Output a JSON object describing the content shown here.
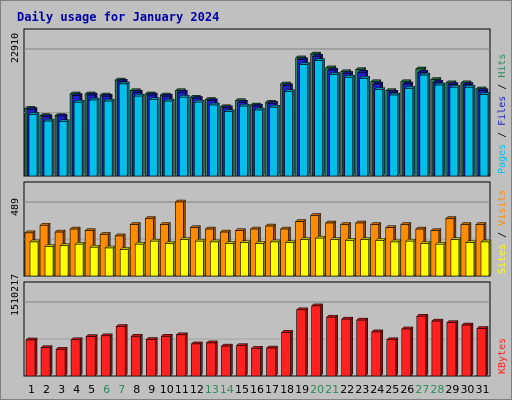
{
  "chart_data": {
    "type": "bar",
    "title": "Daily usage for January 2024",
    "categories": [
      "1",
      "2",
      "3",
      "4",
      "5",
      "6",
      "7",
      "8",
      "9",
      "10",
      "11",
      "12",
      "13",
      "14",
      "15",
      "16",
      "17",
      "18",
      "19",
      "20",
      "21",
      "22",
      "23",
      "24",
      "25",
      "26",
      "27",
      "28",
      "29",
      "30",
      "31"
    ],
    "weekend_days": [
      "6",
      "7",
      "13",
      "14",
      "20",
      "21",
      "27",
      "28"
    ],
    "panels": [
      {
        "id": "hits-files-pages",
        "max_label": "22910",
        "ylim": [
          0,
          22910
        ],
        "legend": [
          "Pages",
          "Files",
          "Hits"
        ],
        "series": [
          {
            "name": "Hits",
            "color": "#2e8b57",
            "values": [
              12200,
              10900,
              10900,
              14800,
              14800,
              14600,
              17300,
              15400,
              14800,
              14600,
              15400,
              14200,
              13800,
              12500,
              13600,
              12800,
              13300,
              16600,
              21300,
              22000,
              19500,
              18800,
              19200,
              17000,
              15400,
              17000,
              19300,
              17400,
              16800,
              16800,
              15700
            ]
          },
          {
            "name": "Files",
            "color": "#2020c8",
            "values": [
              12000,
              10700,
              10800,
              14500,
              14600,
              14400,
              17100,
              15100,
              14600,
              14400,
              15100,
              14000,
              13600,
              12300,
              13300,
              12600,
              13100,
              16300,
              21000,
              21600,
              19100,
              18500,
              18700,
              16600,
              15100,
              16600,
              18700,
              16900,
              16500,
              16500,
              15400
            ]
          },
          {
            "name": "Pages",
            "color": "#00c0e8",
            "values": [
              11100,
              9900,
              9800,
              13300,
              13700,
              13500,
              16600,
              14400,
              13800,
              13500,
              14200,
              13300,
              12800,
              11600,
              12600,
              11900,
              12400,
              15200,
              20100,
              20800,
              18300,
              17800,
              17600,
              15600,
              14600,
              15800,
              18200,
              16400,
              16000,
              16000,
              14700
            ]
          }
        ]
      },
      {
        "id": "visits-sites",
        "max_label": "489",
        "ylim": [
          0,
          489
        ],
        "legend": [
          "Sites",
          "Visits"
        ],
        "series": [
          {
            "name": "Visits",
            "color": "#ff8c00",
            "values": [
              285,
              335,
              290,
              310,
              300,
              275,
              265,
              340,
              380,
              340,
              489,
              320,
              310,
              290,
              300,
              310,
              330,
              310,
              360,
              400,
              350,
              340,
              350,
              340,
              320,
              340,
              310,
              300,
              380,
              340,
              340
            ]
          },
          {
            "name": "Sites",
            "color": "#ffff00",
            "values": [
              225,
              195,
              200,
              210,
              190,
              185,
              175,
              210,
              230,
              215,
              240,
              230,
              225,
              215,
              220,
              215,
              225,
              220,
              240,
              250,
              240,
              235,
              240,
              235,
              225,
              230,
              215,
              210,
              240,
              220,
              225
            ]
          }
        ]
      },
      {
        "id": "kbytes",
        "max_label": "1510217",
        "ylim": [
          0,
          1510217
        ],
        "legend": [
          "KBytes"
        ],
        "series": [
          {
            "name": "KBytes",
            "color": "#ff2020",
            "values": [
              735000,
              580000,
              545000,
              740000,
              805000,
              820000,
              1010000,
              810000,
              745000,
              810000,
              840000,
              655000,
              675000,
              610000,
              620000,
              565000,
              570000,
              890000,
              1350000,
              1430000,
              1200000,
              1160000,
              1140000,
              900000,
              740000,
              960000,
              1220000,
              1120000,
              1090000,
              1040000,
              970000
            ]
          }
        ]
      }
    ]
  }
}
